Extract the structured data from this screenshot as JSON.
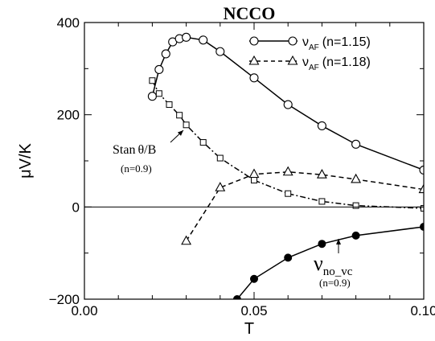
{
  "chart_data": {
    "type": "line",
    "title": "NCCO",
    "xlabel": "T",
    "ylabel": "μV/K",
    "xlim": [
      0.0,
      0.1
    ],
    "ylim": [
      -200,
      400
    ],
    "x_ticks": [
      "0.00",
      "0.05",
      "0.10"
    ],
    "y_ticks": [
      "400",
      "200",
      "0",
      "−200"
    ],
    "x_tick_values": [
      0.0,
      0.05,
      0.1
    ],
    "y_tick_values": [
      400,
      200,
      0,
      -200
    ],
    "zero_line": true,
    "grid": false,
    "legend_position": "top-right",
    "series": [
      {
        "legend_symbol": "ν",
        "legend_sub": "AF",
        "legend_suffix": "(n=1.15)",
        "marker": "circle-open",
        "line": "solid",
        "x": [
          0.02,
          0.022,
          0.024,
          0.026,
          0.028,
          0.03,
          0.035,
          0.04,
          0.05,
          0.06,
          0.07,
          0.08,
          0.1
        ],
        "y": [
          240,
          298,
          332,
          358,
          365,
          368,
          362,
          337,
          280,
          222,
          176,
          136,
          80
        ]
      },
      {
        "legend_symbol": "ν",
        "legend_sub": "AF",
        "legend_suffix": "(n=1.18)",
        "marker": "triangle-open",
        "line": "dashed",
        "x": [
          0.03,
          0.04,
          0.05,
          0.06,
          0.07,
          0.08,
          0.1
        ],
        "y": [
          -74,
          42,
          71,
          76,
          70,
          60,
          38
        ]
      },
      {
        "marker": "square-open",
        "line": "dashdot",
        "x": [
          0.02,
          0.022,
          0.025,
          0.028,
          0.03,
          0.035,
          0.04,
          0.05,
          0.06,
          0.07,
          0.08,
          0.1
        ],
        "y": [
          274,
          246,
          222,
          199,
          178,
          140,
          106,
          58,
          29,
          12,
          3,
          -3
        ]
      },
      {
        "marker": "circle-filled",
        "line": "solid",
        "x": [
          0.045,
          0.05,
          0.06,
          0.07,
          0.08,
          0.1
        ],
        "y": [
          -200,
          -156,
          -110,
          -80,
          -62,
          -43
        ]
      }
    ],
    "annotations": {
      "stan": {
        "prefix": "Stan",
        "theta": "θ",
        "suffix": "/B",
        "sub": "(n=0.9)"
      },
      "novc": {
        "symbol": "ν",
        "sub": "no_vc",
        "note": "(n=0.9)"
      }
    }
  }
}
